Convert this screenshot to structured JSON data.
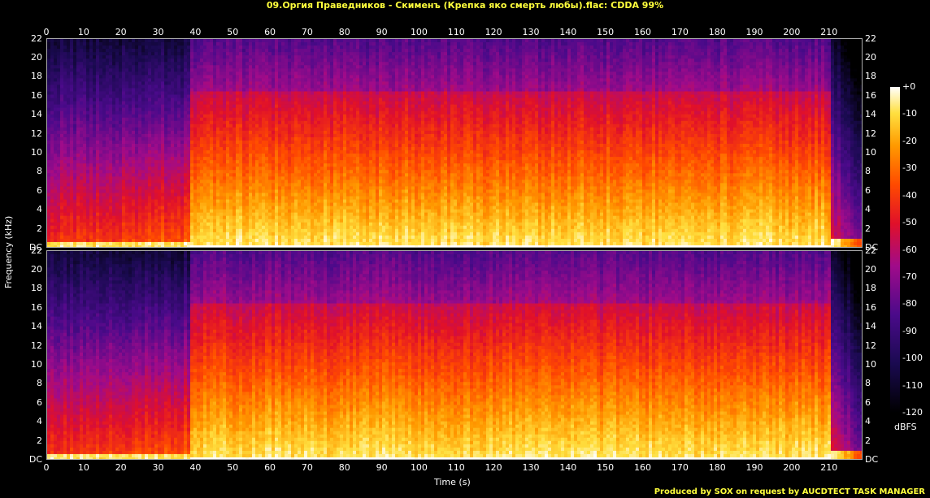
{
  "title": "09.Оргия Праведников - Скименъ (Крепка яко смерть любы).flac: CDDA 99%",
  "footer": "Produced by SOX on request by AUCDTECT TASK MANAGER",
  "chart_data": {
    "type": "heatmap",
    "xlabel": "Time (s)",
    "ylabel": "Frequency (kHz)",
    "xlim": [
      0,
      219
    ],
    "ylim": [
      0,
      22.05
    ],
    "x_ticks": [
      "0",
      "10",
      "20",
      "30",
      "40",
      "50",
      "60",
      "70",
      "80",
      "90",
      "100",
      "110",
      "120",
      "130",
      "140",
      "150",
      "160",
      "170",
      "180",
      "190",
      "200",
      "210"
    ],
    "y_ticks": [
      "DC",
      "2",
      "4",
      "6",
      "8",
      "10",
      "12",
      "14",
      "16",
      "18",
      "20",
      "22"
    ],
    "channels": 2,
    "colorbar": {
      "label": "dBFS",
      "ticks": [
        "+0",
        "-10",
        "-20",
        "-30",
        "-40",
        "-50",
        "-60",
        "-70",
        "-80",
        "-90",
        "-100",
        "-110",
        "-120"
      ],
      "range": [
        -120,
        0
      ]
    },
    "segments_s": [
      {
        "start": 0,
        "end": 38.5,
        "level": "quiet"
      },
      {
        "start": 38.5,
        "end": 210,
        "level": "loud"
      },
      {
        "start": 210,
        "end": 219,
        "level": "fade"
      }
    ]
  }
}
